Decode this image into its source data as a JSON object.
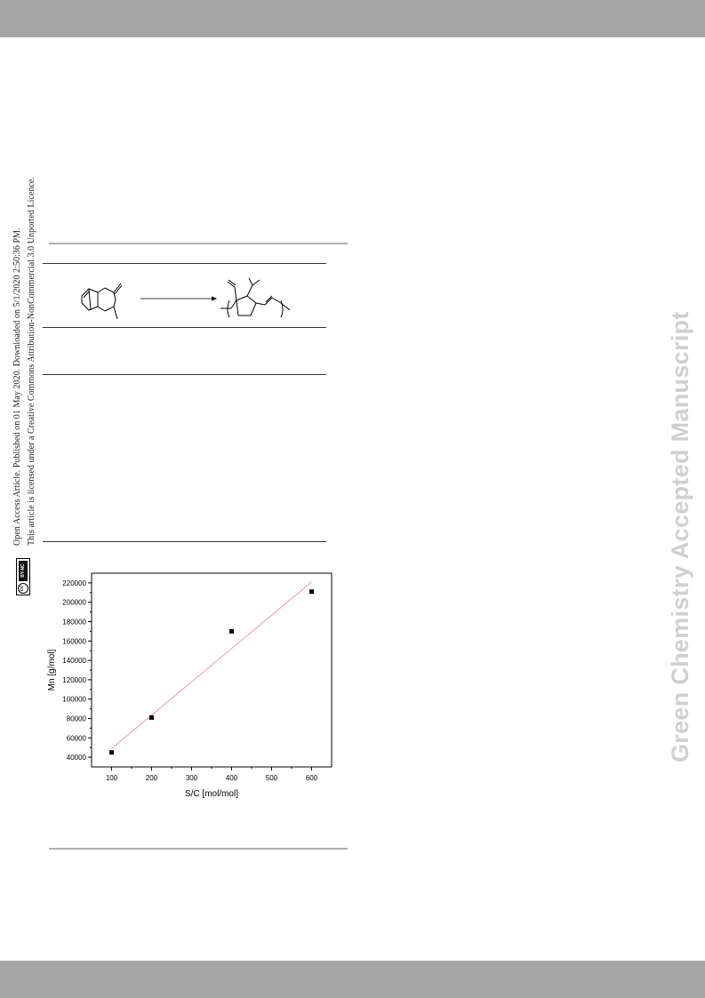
{
  "license": {
    "line1": "Open Access Article. Published on 01 May 2020. Downloaded on 5/1/2020 2:50:36 PM.",
    "line2": "This article is licensed under a Creative Commons Attribution-NonCommercial 3.0 Unported Licence.",
    "badge_cc": "cc",
    "badge_text": "BY-NC"
  },
  "watermark": "Green Chemistry Accepted Manuscript",
  "chart_data": {
    "type": "scatter",
    "x": [
      100,
      200,
      400,
      600
    ],
    "y": [
      45000,
      81000,
      170000,
      211000
    ],
    "fit_line": {
      "x": [
        100,
        600
      ],
      "y": [
        49000,
        221000
      ]
    },
    "xlabel": "S/C [mol/mol]",
    "ylabel": "Mn [g/mol]",
    "xlim": [
      50,
      650
    ],
    "ylim": [
      30000,
      230000
    ],
    "xticks": [
      "100",
      "200",
      "300",
      "400",
      "500",
      "600"
    ],
    "yticks": [
      "40000",
      "60000",
      "80000",
      "100000",
      "120000",
      "140000",
      "160000",
      "180000",
      "200000",
      "220000"
    ],
    "grid": false,
    "marker_color": "#000000",
    "fit_color": "#e8a0a8"
  }
}
